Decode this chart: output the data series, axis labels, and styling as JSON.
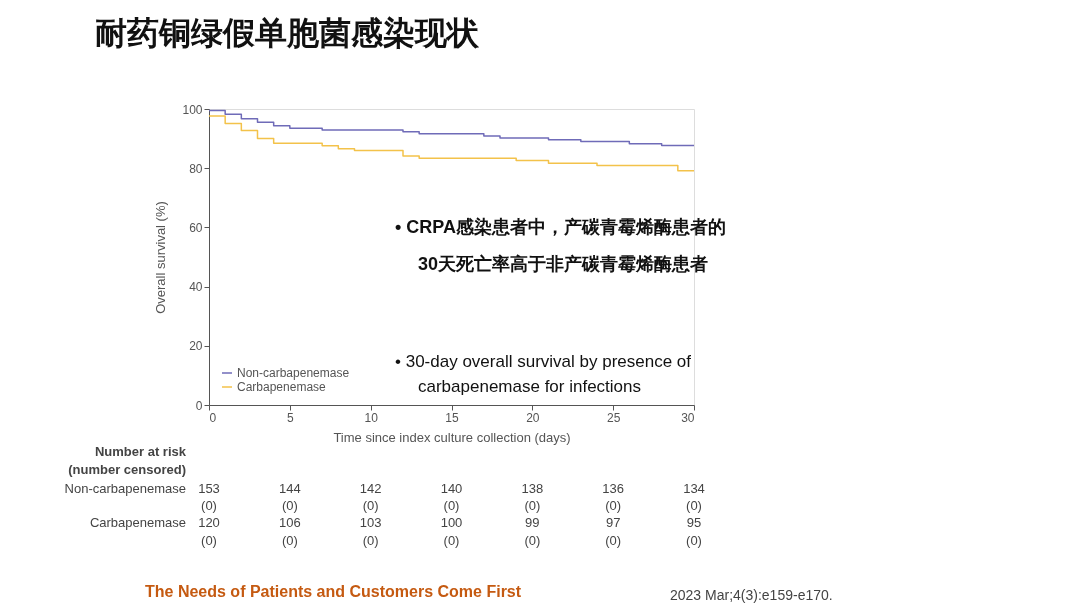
{
  "chart_data": {
    "type": "step",
    "title": "耐药铜绿假单胞菌感染现状",
    "xlabel": "Time since index culture collection (days)",
    "ylabel": "Overall survival (%)",
    "series": [
      {
        "name": "Non-carbapenemase",
        "color": "#6f6bb8",
        "x": [
          0,
          1,
          2,
          3,
          4,
          5,
          7,
          12,
          13,
          17,
          18,
          21,
          23,
          26,
          28,
          30
        ],
        "values": [
          99.5,
          98.2,
          96.7,
          95.5,
          94.3,
          93.5,
          92.9,
          92.3,
          91.6,
          90.9,
          90.2,
          89.6,
          89.0,
          88.3,
          87.7,
          87.7
        ]
      },
      {
        "name": "Carbapenemase",
        "color": "#f3c24a",
        "x": [
          0,
          1,
          2,
          3,
          4,
          7,
          8,
          9,
          12,
          13,
          19,
          21,
          24,
          29,
          30
        ],
        "values": [
          97.6,
          95.1,
          92.7,
          90.0,
          88.4,
          87.6,
          86.6,
          86.0,
          84.1,
          83.4,
          82.6,
          81.7,
          80.9,
          79.1,
          79.1
        ]
      }
    ],
    "xlim": [
      0,
      30
    ],
    "xticks": [
      0,
      5,
      10,
      15,
      20,
      25,
      30
    ],
    "ylim": [
      0,
      100
    ],
    "yticks": [
      0,
      20,
      40,
      60,
      80,
      100
    ],
    "grid": false,
    "legend": "bottom left",
    "annotations": [
      "Number at risk",
      "(number censored)",
      "Non-carbapenemase",
      "153",
      "144",
      "142",
      "140",
      "138",
      "136",
      "134",
      "(0)",
      "(0)",
      "(0)",
      "(0)",
      "(0)",
      "(0)",
      "(0)",
      "Carbapenemase",
      "120",
      "106",
      "103",
      "100",
      "99",
      "97",
      "95",
      "(0)",
      "(0)",
      "(0)",
      "(0)",
      "(0)",
      "(0)",
      "(0)",
      "•  CRPA感染患者中，产碳青霉烯酶患者的",
      "30天死亡率高于非产碳青霉烯酶患者",
      "•  30-day overall survival by presence of",
      "carbapenemase for infections",
      "The Needs of Patients and Customers Come First",
      "2023 Mar;4(3):e159-e170."
    ]
  }
}
